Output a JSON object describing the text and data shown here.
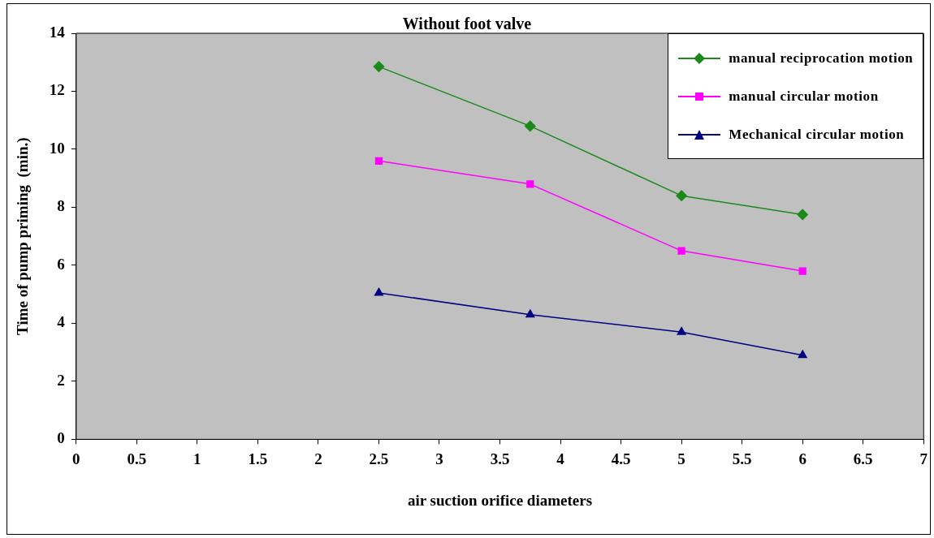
{
  "chart_data": {
    "type": "line",
    "title": "Without foot valve",
    "xlabel": "air suction orifice diameters",
    "ylabel": "Time of pump priming  (min.)",
    "x": [
      2.5,
      3.75,
      5,
      6
    ],
    "series": [
      {
        "name": "manual reciprocation motion",
        "color": "#1a8a1a",
        "marker": "diamond",
        "values": [
          12.85,
          10.8,
          8.4,
          7.75
        ]
      },
      {
        "name": "manual circular motion",
        "color": "#ff00ff",
        "marker": "square",
        "values": [
          9.6,
          8.8,
          6.5,
          5.8
        ]
      },
      {
        "name": "Mechanical circular motion",
        "color": "#000080",
        "marker": "triangle",
        "values": [
          5.05,
          4.3,
          3.7,
          2.9
        ]
      }
    ],
    "xlim": [
      0,
      7
    ],
    "xticks": [
      0,
      0.5,
      1,
      1.5,
      2,
      2.5,
      3,
      3.5,
      4,
      4.5,
      5,
      5.5,
      6,
      6.5,
      7
    ],
    "ylim": [
      0,
      14
    ],
    "yticks": [
      0,
      2,
      4,
      6,
      8,
      10,
      12,
      14
    ],
    "grid": false,
    "legend": "top right",
    "line_style": "solid"
  }
}
